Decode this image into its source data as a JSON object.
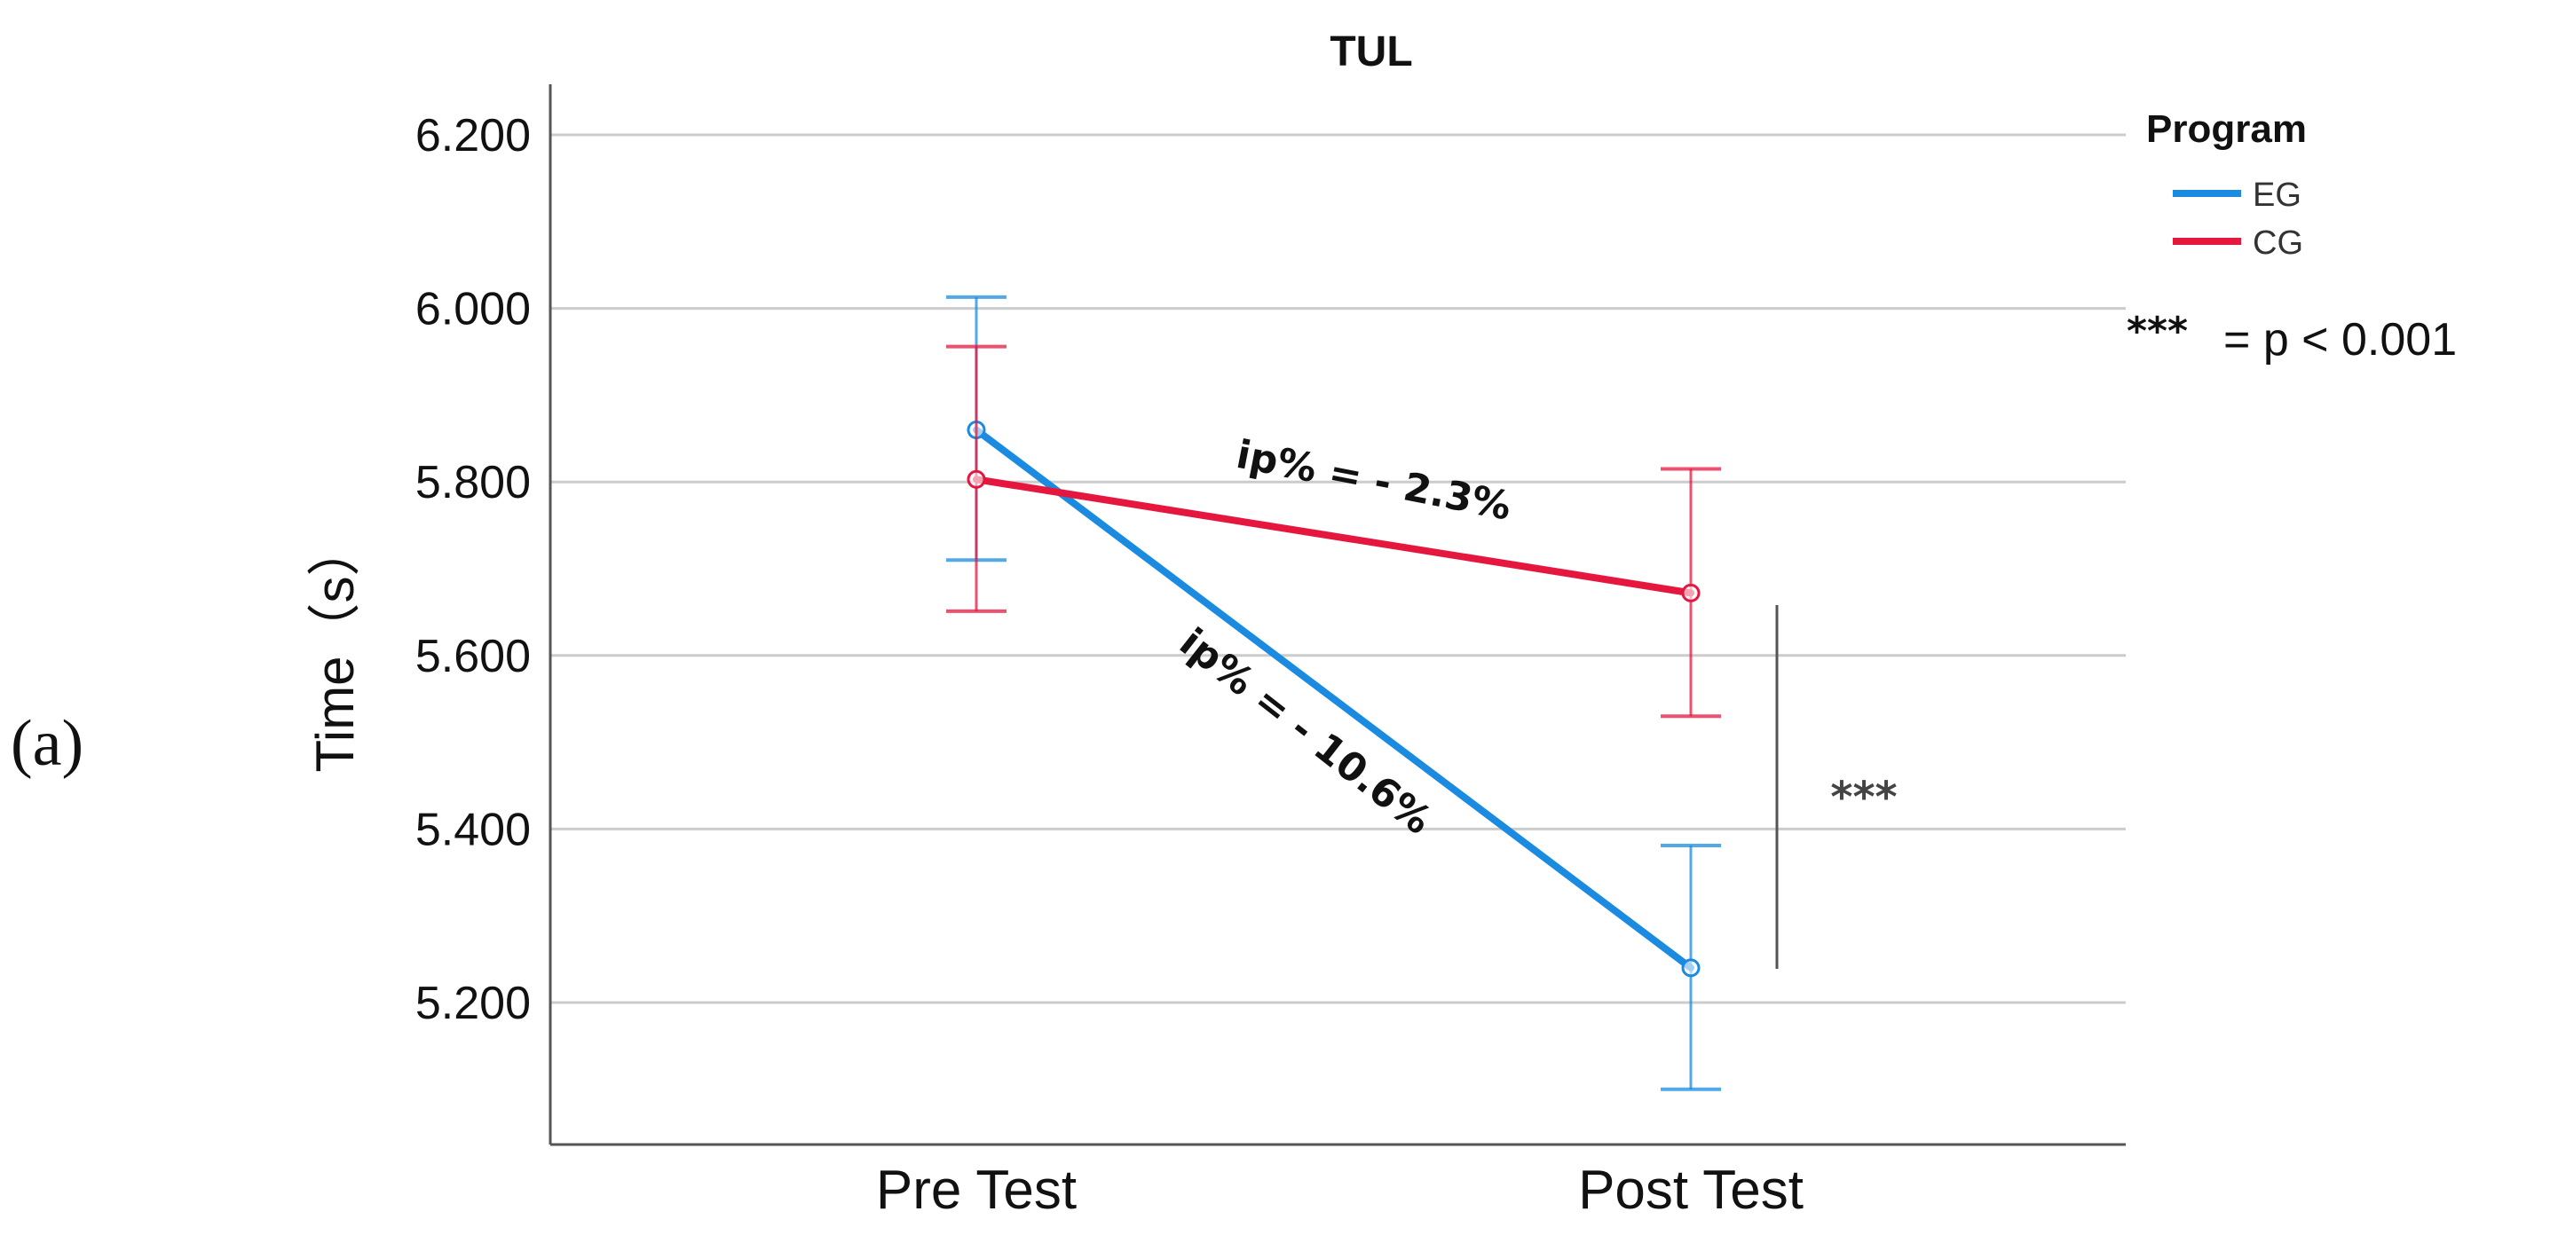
{
  "panel_label": "(a)",
  "chart_data": {
    "type": "line",
    "title": "TUL",
    "xlabel": "",
    "ylabel": "Time（s）",
    "categories": [
      "Pre Test",
      "Post Test"
    ],
    "ylim": [
      5.08,
      6.26
    ],
    "yticks": [
      5.2,
      5.4,
      5.6,
      5.8,
      6.0,
      6.2
    ],
    "ytick_labels": [
      "5.200",
      "5.400",
      "5.600",
      "5.800",
      "6.000",
      "6.200"
    ],
    "grid": true,
    "legend": {
      "title": "Program",
      "placement": "top-right"
    },
    "series": [
      {
        "name": "EG",
        "color": "#1a8be0",
        "values": [
          5.86,
          5.24
        ],
        "error_low": [
          5.71,
          5.1
        ],
        "error_high": [
          6.013,
          5.381
        ]
      },
      {
        "name": "CG",
        "color": "#e5173f",
        "values": [
          5.803,
          5.672
        ],
        "error_low": [
          5.651,
          5.53
        ],
        "error_high": [
          5.956,
          5.815
        ]
      }
    ],
    "annotations": [
      {
        "series": "CG",
        "text": "ip% = - 2.3%"
      },
      {
        "series": "EG",
        "text": "ip% = - 10.6%"
      }
    ],
    "significance": {
      "stars": "***",
      "key_stars": "***",
      "key_text": "= p < 0.001"
    }
  }
}
